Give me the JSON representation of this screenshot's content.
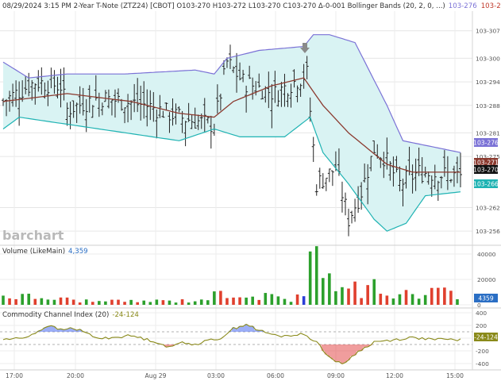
{
  "header": {
    "title": "08/29/2024 3:15 PM 2-Year T-Note (ZTZ24) [CBOT] O103-270 H103-272 L103-270 C103-270 Δ-0-001 Bollinger Bands  (20, 2, 0, ...)",
    "bb_upper": "103-276",
    "bb_mid": "103-271",
    "bb_lower": "103-266"
  },
  "watermark": "barchart",
  "volume_panel": {
    "label": "Volume  (LikeMain)",
    "value": "4,359",
    "badge": "4359",
    "ticks": [
      "40000",
      "20000",
      "0"
    ]
  },
  "cci_panel": {
    "label": "Commodity Channel Index  (20)",
    "value": "-24-124",
    "badge": "-24-124",
    "ticks": [
      "400",
      "200",
      "0",
      "-200",
      "-400"
    ]
  },
  "price_badges": {
    "upper": "103-276",
    "mid": "103-271",
    "close": "103-270",
    "lower": "103-266"
  },
  "colors": {
    "bb_upper": "#7b72d6",
    "bb_mid": "#8b3a2f",
    "bb_lower": "#1fb3b3",
    "band_fill": "#d9f3f3",
    "up_volume": "#2ca02c",
    "down_volume": "#e0402e",
    "cci_line": "#8a8a1a",
    "cci_over": "#4a6cf0",
    "cci_under": "#e23b3b"
  },
  "chart_data": [
    {
      "type": "line",
      "title": "2-Year T-Note (ZTZ24) price with Bollinger Bands (20, 2)",
      "x": [
        "17:00",
        "20:00",
        "Aug 29",
        "03:00",
        "06:00",
        "09:00",
        "12:00",
        "15:00"
      ],
      "ylabel": "",
      "yticks": [
        "103-307",
        "103-300",
        "103-294",
        "103-288",
        "103-281",
        "103-275",
        "103-262",
        "103-256"
      ],
      "ylim": [
        "103-253",
        "103-312"
      ],
      "series": [
        {
          "name": "Price (OHLC bars)",
          "values_start": "103-289",
          "values_high": "103-306",
          "values_low": "103-260",
          "values_end": "103-270"
        },
        {
          "name": "Upper band",
          "end": "103-276"
        },
        {
          "name": "Middle band",
          "end": "103-271"
        },
        {
          "name": "Lower band",
          "end": "103-266"
        }
      ],
      "grid": true
    },
    {
      "type": "bar",
      "title": "Volume (LikeMain)",
      "yticks": [
        40000,
        20000,
        0
      ],
      "ylim": [
        0,
        45000
      ],
      "last_value": 4359
    },
    {
      "type": "line",
      "title": "Commodity Channel Index (20)",
      "yticks": [
        400,
        200,
        0,
        -200,
        -400
      ],
      "ylim": [
        -450,
        300
      ],
      "reference_lines": [
        100,
        -100
      ],
      "last_value": "-24-124"
    }
  ]
}
